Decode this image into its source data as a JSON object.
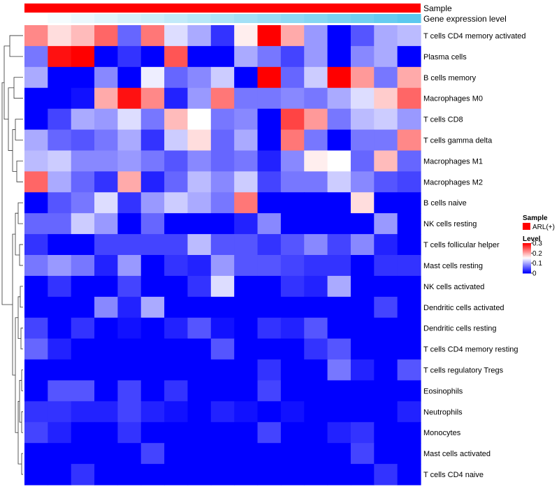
{
  "chart_data": {
    "type": "heatmap",
    "title": "",
    "annotation_tracks": [
      {
        "name": "Sample",
        "color": "#ff0000"
      },
      {
        "name": "Gene expression level",
        "colors_low_to_high": [
          "#ffffff",
          "#5bc8ef"
        ]
      }
    ],
    "rows": [
      "T cells CD4 memory activated",
      "Plasma cells",
      "B cells memory",
      "Macrophages M0",
      "T cells CD8",
      "T cells gamma delta",
      "Macrophages M1",
      "Macrophages M2",
      "B cells naive",
      "NK cells resting",
      "T cells follicular helper",
      "Mast cells resting",
      "NK cells activated",
      "Dendritic cells activated",
      "Dendritic cells resting",
      "T cells CD4 memory resting",
      "T cells regulatory  Tregs",
      "Eosinophils",
      "Neutrophils",
      "Monocytes",
      "Mast cells activated",
      "T cells CD4 naive"
    ],
    "n_columns": 17,
    "values": [
      [
        0.22,
        0.17,
        0.19,
        0.24,
        0.06,
        0.23,
        0.13,
        0.1,
        0.03,
        0.16,
        0.3,
        0.2,
        0.09,
        0.0,
        0.05,
        0.1,
        0.11
      ],
      [
        0.07,
        0.29,
        0.3,
        0.0,
        0.03,
        0.0,
        0.25,
        0.0,
        0.0,
        0.1,
        0.07,
        0.04,
        0.09,
        0.0,
        0.08,
        0.1,
        0.0
      ],
      [
        0.1,
        0.0,
        0.0,
        0.08,
        0.0,
        0.14,
        0.06,
        0.08,
        0.12,
        0.0,
        0.3,
        0.06,
        0.12,
        0.3,
        0.21,
        0.07,
        0.2
      ],
      [
        0.0,
        0.0,
        0.01,
        0.2,
        0.29,
        0.22,
        0.02,
        0.09,
        0.23,
        0.07,
        0.07,
        0.08,
        0.07,
        0.1,
        0.13,
        0.18,
        0.24
      ],
      [
        0.0,
        0.04,
        0.1,
        0.09,
        0.13,
        0.07,
        0.19,
        0.15,
        0.07,
        0.08,
        0.0,
        0.26,
        0.21,
        0.07,
        0.11,
        0.12,
        0.09
      ],
      [
        0.1,
        0.06,
        0.05,
        0.07,
        0.1,
        0.03,
        0.12,
        0.17,
        0.06,
        0.1,
        0.0,
        0.23,
        0.07,
        0.0,
        0.07,
        0.07,
        0.22
      ],
      [
        0.11,
        0.12,
        0.08,
        0.08,
        0.09,
        0.07,
        0.05,
        0.08,
        0.06,
        0.07,
        0.02,
        0.08,
        0.16,
        0.15,
        0.06,
        0.19,
        0.06
      ],
      [
        0.24,
        0.1,
        0.06,
        0.03,
        0.2,
        0.02,
        0.06,
        0.11,
        0.08,
        0.12,
        0.04,
        0.07,
        0.07,
        0.12,
        0.08,
        0.05,
        0.04
      ],
      [
        0.0,
        0.05,
        0.07,
        0.13,
        0.03,
        0.09,
        0.12,
        0.1,
        0.07,
        0.23,
        0.0,
        0.0,
        0.0,
        0.0,
        0.17,
        0.0,
        0.0
      ],
      [
        0.06,
        0.06,
        0.12,
        0.09,
        0.0,
        0.06,
        0.0,
        0.0,
        0.0,
        0.02,
        0.08,
        0.0,
        0.0,
        0.0,
        0.0,
        0.09,
        0.0
      ],
      [
        0.03,
        0.0,
        0.0,
        0.04,
        0.04,
        0.04,
        0.04,
        0.11,
        0.05,
        0.05,
        0.03,
        0.05,
        0.08,
        0.04,
        0.08,
        0.02,
        0.0
      ],
      [
        0.07,
        0.09,
        0.07,
        0.02,
        0.09,
        0.0,
        0.03,
        0.02,
        0.09,
        0.05,
        0.05,
        0.04,
        0.03,
        0.03,
        0.0,
        0.03,
        0.03
      ],
      [
        0.0,
        0.03,
        0.0,
        0.0,
        0.04,
        0.0,
        0.0,
        0.03,
        0.13,
        0.0,
        0.0,
        0.03,
        0.02,
        0.1,
        0.0,
        0.0,
        0.0
      ],
      [
        0.0,
        0.0,
        0.0,
        0.08,
        0.02,
        0.1,
        0.0,
        0.0,
        0.0,
        0.0,
        0.0,
        0.0,
        0.0,
        0.0,
        0.0,
        0.04,
        0.0
      ],
      [
        0.04,
        0.0,
        0.03,
        0.0,
        0.01,
        0.0,
        0.02,
        0.05,
        0.01,
        0.0,
        0.03,
        0.02,
        0.05,
        0.0,
        0.0,
        0.0,
        0.0
      ],
      [
        0.06,
        0.02,
        0.0,
        0.0,
        0.0,
        0.0,
        0.0,
        0.0,
        0.05,
        0.0,
        0.0,
        0.0,
        0.03,
        0.05,
        0.0,
        0.0,
        0.0
      ],
      [
        0.0,
        0.0,
        0.0,
        0.0,
        0.0,
        0.0,
        0.0,
        0.0,
        0.0,
        0.0,
        0.03,
        0.0,
        0.0,
        0.07,
        0.02,
        0.0,
        0.05
      ],
      [
        0.0,
        0.05,
        0.05,
        0.0,
        0.04,
        0.0,
        0.03,
        0.0,
        0.0,
        0.0,
        0.04,
        0.0,
        0.0,
        0.0,
        0.0,
        0.0,
        0.0
      ],
      [
        0.03,
        0.03,
        0.02,
        0.02,
        0.04,
        0.02,
        0.01,
        0.0,
        0.02,
        0.01,
        0.0,
        0.01,
        0.0,
        0.0,
        0.0,
        0.0,
        0.02
      ],
      [
        0.04,
        0.02,
        0.0,
        0.0,
        0.03,
        0.0,
        0.0,
        0.0,
        0.0,
        0.0,
        0.04,
        0.0,
        0.0,
        0.02,
        0.03,
        0.0,
        0.0
      ],
      [
        0.0,
        0.0,
        0.0,
        0.0,
        0.0,
        0.04,
        0.0,
        0.0,
        0.0,
        0.0,
        0.0,
        0.0,
        0.0,
        0.0,
        0.04,
        0.0,
        0.0
      ],
      [
        0.0,
        0.0,
        0.03,
        0.0,
        0.0,
        0.0,
        0.0,
        0.0,
        0.0,
        0.0,
        0.0,
        0.0,
        0.0,
        0.0,
        0.0,
        0.03,
        0.0
      ]
    ],
    "color_scale": {
      "min": 0,
      "mid": 0.15,
      "max": 0.3,
      "low_color": "#0000ff",
      "mid_color": "#ffffff",
      "high_color": "#ff0000"
    },
    "legend": {
      "sample_title": "Sample",
      "sample_entry": "ARL(+)",
      "sample_color": "#ff0000",
      "level_title": "Level",
      "ticks": [
        "0.3",
        "0.2",
        "0.1",
        "0"
      ],
      "tick_values": [
        0.3,
        0.2,
        0.1,
        0.0
      ]
    },
    "row_dendrogram": true
  }
}
